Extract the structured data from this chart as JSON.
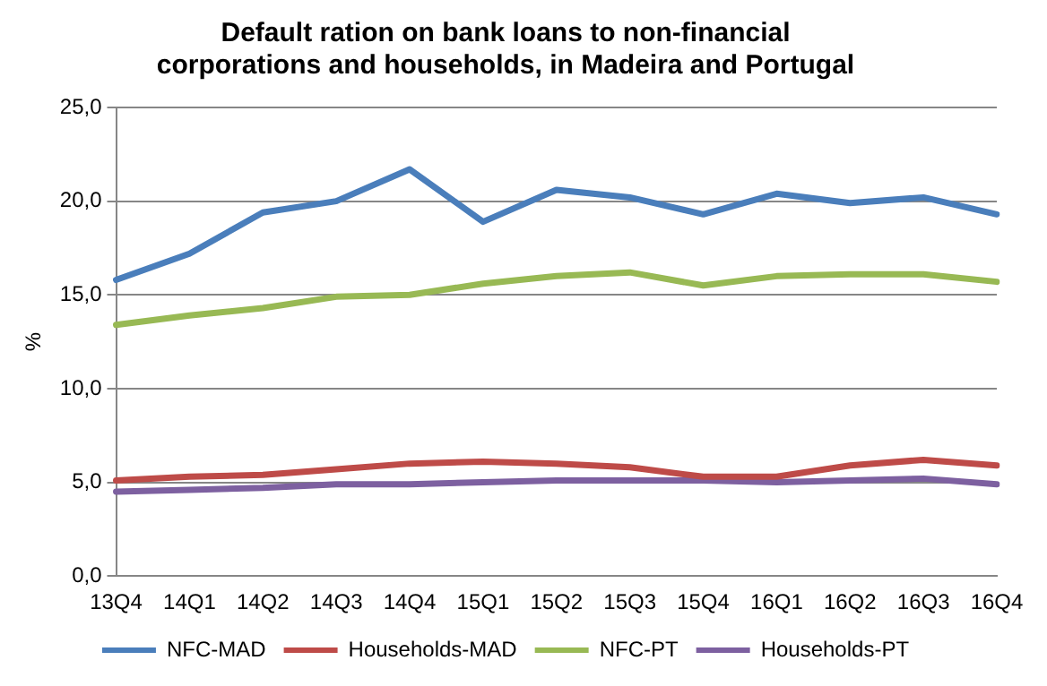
{
  "chart_data": {
    "type": "line",
    "title": "Default ration on bank loans to non-financial corporations and households, in Madeira and Portugal",
    "ylabel": "%",
    "categories": [
      "13Q4",
      "14Q1",
      "14Q2",
      "14Q3",
      "14Q4",
      "15Q1",
      "15Q2",
      "15Q3",
      "15Q4",
      "16Q1",
      "16Q2",
      "16Q3",
      "16Q4"
    ],
    "series": [
      {
        "name": "NFC-MAD",
        "color": "#4a7ebb",
        "values": [
          15.8,
          17.2,
          19.4,
          20.0,
          21.7,
          18.9,
          20.6,
          20.2,
          19.3,
          20.4,
          19.9,
          20.2,
          19.3
        ]
      },
      {
        "name": "Households-MAD",
        "color": "#be4b48",
        "values": [
          5.1,
          5.3,
          5.4,
          5.7,
          6.0,
          6.1,
          6.0,
          5.8,
          5.3,
          5.3,
          5.9,
          6.2,
          5.9
        ]
      },
      {
        "name": "NFC-PT",
        "color": "#98b954",
        "values": [
          13.4,
          13.9,
          14.3,
          14.9,
          15.0,
          15.6,
          16.0,
          16.2,
          15.5,
          16.0,
          16.1,
          16.1,
          15.7
        ]
      },
      {
        "name": "Households-PT",
        "color": "#7d60a0",
        "values": [
          4.5,
          4.6,
          4.7,
          4.9,
          4.9,
          5.0,
          5.1,
          5.1,
          5.1,
          5.0,
          5.1,
          5.2,
          4.9
        ]
      }
    ],
    "ylim": [
      0,
      25
    ],
    "yticks": [
      {
        "value": 0,
        "label": "0,0"
      },
      {
        "value": 5,
        "label": "5,0"
      },
      {
        "value": 10,
        "label": "10,0"
      },
      {
        "value": 15,
        "label": "15,0"
      },
      {
        "value": 20,
        "label": "20,0"
      },
      {
        "value": 25,
        "label": "25,0"
      }
    ],
    "grid": "y",
    "legend": "bottom",
    "marker": "none",
    "line_style": "solid"
  }
}
